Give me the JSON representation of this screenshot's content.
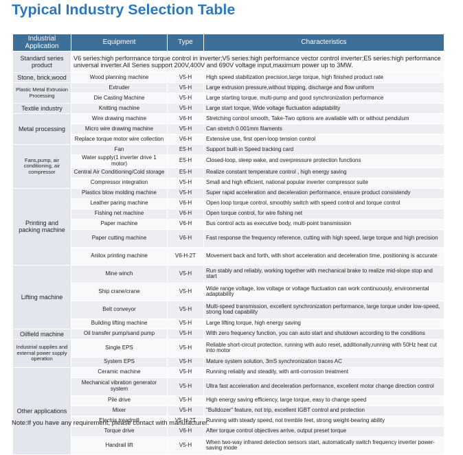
{
  "page": {
    "title": "Typical Industry Selection Table",
    "note": "Note:If you have any requirement, please contact with manufacturer."
  },
  "table": {
    "headers": {
      "application": "Industrial Application",
      "equipment": "Equipment",
      "type": "Type",
      "characteristics": "Characteristics"
    },
    "standard": {
      "application": "Standard series product",
      "description": "V6 series:high performance torque control in inverter;V5 series:high performance vector control inverter;E5 series:high performance universal inverter.All Series support 200V,400V and 690V voltage input,maximum power up to 3MW."
    },
    "groups": [
      {
        "application": "Stone, brick,wood",
        "rows": [
          {
            "equipment": "Wood planning machine",
            "type": "V5-H",
            "characteristics": "High speed stabilization precision,large torque, high finished product rate"
          }
        ]
      },
      {
        "application": "Plastic Metal Extrusion Processing",
        "rows": [
          {
            "equipment": "Extruder",
            "type": "V5-H",
            "characteristics": "Large extrusion pressure,without tripping, discharge and flow uniform"
          },
          {
            "equipment": "Die Casting Machine",
            "type": "V5-H",
            "characteristics": "Large starting torque, multi-pump and good synchronization performance"
          }
        ]
      },
      {
        "application": "Textile industry",
        "rows": [
          {
            "equipment": "Knitting machine",
            "type": "V5-H",
            "characteristics": "Large start torque, Wide voltage fluctuation adaptability"
          }
        ]
      },
      {
        "application": "Metal processing",
        "rows": [
          {
            "equipment": "Wire drawing machine",
            "type": "V6-H",
            "characteristics": "Stretching control smooth, Take-Two options are available with or without pendulum"
          },
          {
            "equipment": "Micro wire drawing machine",
            "type": "V5-H",
            "characteristics": "Can stretch 0.001mm filaments"
          },
          {
            "equipment": "Replace torque motor wire collection",
            "type": "V6-H",
            "characteristics": "Extensive use, first open-loop tension control"
          }
        ]
      },
      {
        "application": "Fans,pump, air conditioning, air compressor",
        "rows": [
          {
            "equipment": "Fan",
            "type": "E5-H",
            "characteristics": "Support built-in Speed tracking card"
          },
          {
            "equipment": "Water supply(1 inverter drive 1 motor)",
            "type": "E5-H",
            "characteristics": "Closed-loop, sleep wake, and overpressure protection functions"
          },
          {
            "equipment": "Central Air Conditioning/Cold storage",
            "type": "E5-H",
            "characteristics": "Realize constant temperature control , high energy saving"
          },
          {
            "equipment": "Compressor integration",
            "type": "V5-H",
            "characteristics": "Small and high efficient, national popular inverter compressor suite"
          }
        ]
      },
      {
        "application": "Printing and packing machine",
        "rows": [
          {
            "equipment": "Plastics blow molding machine",
            "type": "V5-H",
            "characteristics": "Super rapid acceleration and deceleration performance, ensure product consistendy"
          },
          {
            "equipment": "Leather paring machine",
            "type": "V6-H",
            "characteristics": "Open loop torque control, smoothly switch with speed control and torque control"
          },
          {
            "equipment": "Fishing net machine",
            "type": "V6-H",
            "characteristics": "Open torque control, for wire fishing net"
          },
          {
            "equipment": "Paper machine",
            "type": "V6-H",
            "characteristics": "Bus control acts as executive body, multi-point transmission"
          },
          {
            "equipment": "Paper cutting machine",
            "type": "V6-H",
            "characteristics": "Fast response the frequency reference, cutting with high speed, large torque and high precision"
          },
          {
            "equipment": "Anilox printing machine",
            "type": "V6-H-2T",
            "characteristics": "Movement back and forth, with short acceleration and deceleration time, positioning is accurate"
          }
        ]
      },
      {
        "application": "Lifting machine",
        "rows": [
          {
            "equipment": "Mine winch",
            "type": "V5-H",
            "characteristics": "Run stably and reliably, working together with mechanical brake to realize mid-slope stop and start"
          },
          {
            "equipment": "Ship crane/crane",
            "type": "V5-H",
            "characteristics": "Wide range voltage, low voltage or voltage fluctuation can work continuously, environmental adaptability"
          },
          {
            "equipment": "Belt conveyor",
            "type": "V5-H",
            "characteristics": "Multi-speed transmission, excellent synchronization performance, large torque under low-speed, strong load capability"
          },
          {
            "equipment": "Building lifting machine",
            "type": "V5-H",
            "characteristics": "Large lifting torque, high energy saving"
          }
        ]
      },
      {
        "application": "Oilfield machine",
        "rows": [
          {
            "equipment": "Oil transfer pump/sand pump",
            "type": "V5-H",
            "characteristics": "With zero frequency function, you can auto start and shutdown according to the conditions"
          }
        ]
      },
      {
        "application": "Industrial supplies and external power supply operation",
        "rows": [
          {
            "equipment": "Single EPS",
            "type": "V5-H",
            "characteristics": "Reliable short-circuit protection, running with auto reset, additionally,running with 50Hz heat cut into motor"
          },
          {
            "equipment": "System EPS",
            "type": "V5-H",
            "characteristics": "Mature system solution, 3mS synchronization traces AC"
          }
        ]
      },
      {
        "application": "Other applications",
        "rows": [
          {
            "equipment": "Ceramic machine",
            "type": "V5-H",
            "characteristics": "Running reliably and steadily, with anti-corrosion treatment"
          },
          {
            "equipment": "Mechanical vibration generator system",
            "type": "V5-H",
            "characteristics": "Ultra fast acceleration and deceleration performance, excellent motor change direction control"
          },
          {
            "equipment": "Pile drive",
            "type": "V5-H",
            "characteristics": "High energy saving efficiency, large torque, easy to change speed"
          },
          {
            "equipment": "Mixer",
            "type": "V5-H",
            "characteristics": "\"Bulldozer\" feature, not trip, excellent IGBT control and protection"
          },
          {
            "equipment": "Electric treadmill",
            "type": "V5-H-2T",
            "characteristics": "Running with steady speed, not tremble feet, strong weight-bearing ability"
          },
          {
            "equipment": "Torque drive",
            "type": "V6-H",
            "characteristics": "After torque control objectives arrive, output preset torque"
          },
          {
            "equipment": "Handrail lift",
            "type": "V5-H",
            "characteristics": "When two-way infrared detection sensors start, automatically switch frequency inverter power-saving mode"
          }
        ]
      }
    ]
  }
}
